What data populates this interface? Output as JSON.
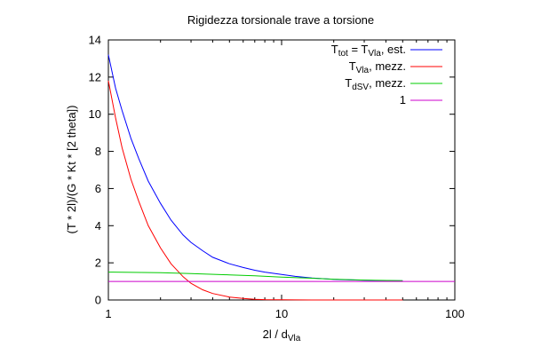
{
  "chart_data": {
    "type": "line",
    "title": "Rigidezza torsionale trave a torsione",
    "xlabel": {
      "main": "2l / d",
      "sub": "Vla"
    },
    "ylabel": "(T * 2l)/(G * Kt * [2 theta])",
    "xscale": "log",
    "xlim": [
      1,
      100
    ],
    "ylim": [
      0,
      14
    ],
    "x_ticks": [
      1,
      10,
      100
    ],
    "x_tick_labels": [
      "1",
      "10",
      "100"
    ],
    "y_ticks": [
      0,
      2,
      4,
      6,
      8,
      10,
      12,
      14
    ],
    "y_tick_labels": [
      "0",
      "2",
      "4",
      "6",
      "8",
      "10",
      "12",
      "14"
    ],
    "grid": false,
    "legend_position": "top-right",
    "series": [
      {
        "name": "T_tot = T_Vla, est.",
        "legend": {
          "a": "T",
          "a_sub": "tot",
          "b": " = T",
          "b_sub": "Vla",
          "c": ", est."
        },
        "color": "#0000ff",
        "x": [
          1,
          1.1,
          1.2,
          1.35,
          1.5,
          1.7,
          2,
          2.3,
          2.7,
          3,
          3.5,
          4,
          5,
          6,
          7,
          8,
          10,
          12,
          15,
          20,
          25,
          30,
          40,
          50
        ],
        "y": [
          13.2,
          11.4,
          10.2,
          8.7,
          7.6,
          6.4,
          5.2,
          4.3,
          3.5,
          3.1,
          2.65,
          2.3,
          1.95,
          1.75,
          1.6,
          1.5,
          1.37,
          1.27,
          1.18,
          1.11,
          1.08,
          1.06,
          1.04,
          1.03
        ]
      },
      {
        "name": "T_Vla, mezz.",
        "legend": {
          "a": "T",
          "a_sub": "Vla",
          "c": ", mezz."
        },
        "color": "#ff0000",
        "x": [
          1,
          1.1,
          1.2,
          1.35,
          1.5,
          1.7,
          2,
          2.3,
          2.7,
          3,
          3.5,
          4,
          5,
          6,
          7,
          8,
          10,
          12,
          15,
          20,
          30,
          50
        ],
        "y": [
          11.8,
          9.8,
          8.2,
          6.5,
          5.3,
          4.0,
          2.8,
          1.95,
          1.25,
          0.9,
          0.55,
          0.35,
          0.16,
          0.08,
          0.04,
          0.02,
          0.01,
          0.005,
          0.002,
          0.001,
          0.0,
          0.0
        ]
      },
      {
        "name": "T_dSV, mezz.",
        "legend": {
          "a": "T",
          "a_sub": "dSV",
          "c": ", mezz."
        },
        "color": "#00cc00",
        "x": [
          1,
          2,
          3,
          5,
          7,
          10,
          15,
          20,
          30,
          50
        ],
        "y": [
          1.5,
          1.47,
          1.42,
          1.35,
          1.3,
          1.23,
          1.17,
          1.12,
          1.07,
          1.04
        ]
      },
      {
        "name": "1",
        "legend": {
          "a": "1"
        },
        "color": "#cc00cc",
        "x": [
          1,
          100
        ],
        "y": [
          1,
          1
        ]
      }
    ]
  }
}
